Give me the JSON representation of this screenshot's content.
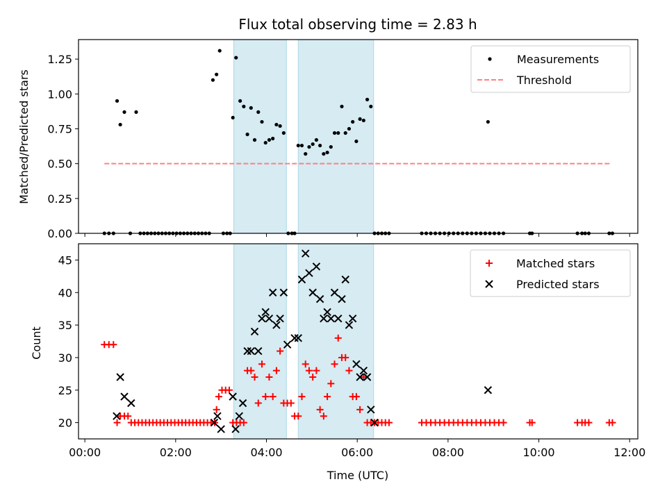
{
  "chart_data": [
    {
      "type": "scatter",
      "title": "Flux total observing time = 2.83 h",
      "xlabel": "",
      "ylabel": "Matched/Predicted stars",
      "xlim_hours": [
        -0.14,
        12.18
      ],
      "ylim": [
        0,
        1.39
      ],
      "yticks": [
        0,
        0.25,
        0.5,
        0.75,
        1.0,
        1.25
      ],
      "ytick_labels": [
        "0.00",
        "0.25",
        "0.50",
        "0.75",
        "1.00",
        "1.25"
      ],
      "shaded_intervals_hours": [
        [
          3.28,
          4.44
        ],
        [
          4.7,
          6.36
        ]
      ],
      "legend": {
        "position": "top-right",
        "entries": [
          "Measurements",
          "Threshold"
        ]
      },
      "threshold": {
        "name": "Threshold",
        "value": 0.5,
        "x_range_hours": [
          0.43,
          11.6
        ],
        "color": "#ff7f7f"
      },
      "series": [
        {
          "name": "Measurements",
          "color": "#000000",
          "x_hours": [
            0.43,
            0.53,
            0.63,
            0.71,
            0.78,
            0.87,
            1.0,
            1.13,
            1.22,
            1.3,
            1.38,
            1.46,
            1.54,
            1.62,
            1.7,
            1.78,
            1.86,
            1.94,
            2.02,
            2.1,
            2.18,
            2.26,
            2.34,
            2.42,
            2.5,
            2.58,
            2.66,
            2.74,
            2.82,
            2.9,
            2.97,
            3.05,
            3.13,
            3.2,
            3.26,
            3.33,
            3.42,
            3.5,
            3.58,
            3.66,
            3.74,
            3.82,
            3.9,
            3.98,
            4.06,
            4.14,
            4.22,
            4.3,
            4.38,
            4.48,
            4.56,
            4.62,
            4.7,
            4.78,
            4.86,
            4.94,
            5.02,
            5.1,
            5.18,
            5.26,
            5.34,
            5.42,
            5.5,
            5.58,
            5.66,
            5.74,
            5.82,
            5.9,
            5.98,
            6.06,
            6.14,
            6.22,
            6.3,
            6.38,
            6.46,
            6.54,
            6.62,
            6.7,
            7.42,
            7.52,
            7.62,
            7.72,
            7.82,
            7.92,
            8.02,
            8.12,
            8.22,
            8.32,
            8.42,
            8.52,
            8.62,
            8.72,
            8.82,
            8.88,
            8.92,
            9.02,
            9.12,
            9.22,
            9.8,
            9.85,
            10.85,
            10.95,
            11.02,
            11.1,
            11.55,
            11.62
          ],
          "y": [
            0,
            0,
            0,
            0.95,
            0.78,
            0.87,
            0,
            0.87,
            0,
            0,
            0,
            0,
            0,
            0,
            0,
            0,
            0,
            0,
            0,
            0,
            0,
            0,
            0,
            0,
            0,
            0,
            0,
            0,
            1.1,
            1.14,
            1.31,
            0,
            0,
            0,
            0.83,
            1.26,
            0.95,
            0.91,
            0.71,
            0.9,
            0.67,
            0.87,
            0.8,
            0.65,
            0.67,
            0.68,
            0.78,
            0.77,
            0.72,
            0,
            0,
            0,
            0.63,
            0.63,
            0.57,
            0.62,
            0.64,
            0.67,
            0.63,
            0.57,
            0.58,
            0.62,
            0.72,
            0.72,
            0.91,
            0.72,
            0.75,
            0.8,
            0.66,
            0.82,
            0.81,
            0.96,
            0.91,
            0,
            0,
            0,
            0,
            0,
            0,
            0,
            0,
            0,
            0,
            0,
            0,
            0,
            0,
            0,
            0,
            0,
            0,
            0,
            0,
            0.8,
            0,
            0,
            0,
            0,
            0,
            0,
            0,
            0,
            0,
            0,
            0,
            0
          ]
        }
      ]
    },
    {
      "type": "scatter",
      "title": "",
      "xlabel": "Time (UTC)",
      "ylabel": "Count",
      "xlim_hours": [
        -0.14,
        12.18
      ],
      "ylim": [
        17.5,
        47.5
      ],
      "yticks": [
        20,
        25,
        30,
        35,
        40,
        45
      ],
      "ytick_labels": [
        "20",
        "25",
        "30",
        "35",
        "40",
        "45"
      ],
      "xticks_hours": [
        0,
        2,
        4,
        6,
        8,
        10,
        12
      ],
      "xtick_labels": [
        "00:00",
        "02:00",
        "04:00",
        "06:00",
        "08:00",
        "10:00",
        "12:00"
      ],
      "shaded_intervals_hours": [
        [
          3.28,
          4.44
        ],
        [
          4.7,
          6.36
        ]
      ],
      "legend": {
        "position": "top-right",
        "entries": [
          "Matched stars",
          "Predicted stars"
        ]
      },
      "series": [
        {
          "name": "Matched stars",
          "marker": "plus",
          "color": "#ff0000",
          "x_hours": [
            0.43,
            0.53,
            0.63,
            0.71,
            0.78,
            0.87,
            0.95,
            1.02,
            1.1,
            1.18,
            1.26,
            1.34,
            1.42,
            1.5,
            1.58,
            1.66,
            1.74,
            1.82,
            1.9,
            1.98,
            2.06,
            2.14,
            2.22,
            2.3,
            2.38,
            2.46,
            2.54,
            2.62,
            2.7,
            2.78,
            2.86,
            2.9,
            2.95,
            3.02,
            3.1,
            3.18,
            3.26,
            3.34,
            3.42,
            3.5,
            3.58,
            3.66,
            3.74,
            3.82,
            3.9,
            3.98,
            4.06,
            4.14,
            4.22,
            4.3,
            4.38,
            4.46,
            4.54,
            4.62,
            4.7,
            4.78,
            4.86,
            4.94,
            5.02,
            5.1,
            5.18,
            5.26,
            5.34,
            5.42,
            5.5,
            5.58,
            5.66,
            5.74,
            5.82,
            5.9,
            5.98,
            6.06,
            6.14,
            6.22,
            6.3,
            6.38,
            6.46,
            6.54,
            6.62,
            6.7,
            7.42,
            7.52,
            7.62,
            7.72,
            7.82,
            7.92,
            8.02,
            8.12,
            8.22,
            8.32,
            8.42,
            8.52,
            8.62,
            8.72,
            8.82,
            8.92,
            9.02,
            9.12,
            9.22,
            9.8,
            9.85,
            10.85,
            10.95,
            11.02,
            11.1,
            11.55,
            11.62
          ],
          "y": [
            32,
            32,
            32,
            20,
            21,
            21,
            21,
            20,
            20,
            20,
            20,
            20,
            20,
            20,
            20,
            20,
            20,
            20,
            20,
            20,
            20,
            20,
            20,
            20,
            20,
            20,
            20,
            20,
            20,
            20,
            20,
            22,
            24,
            25,
            25,
            25,
            20,
            20,
            20,
            20,
            28,
            28,
            27,
            23,
            29,
            24,
            27,
            24,
            28,
            31,
            23,
            23,
            23,
            21,
            21,
            24,
            29,
            28,
            27,
            28,
            22,
            21,
            24,
            26,
            29,
            33,
            30,
            30,
            28,
            24,
            24,
            22,
            27,
            20,
            20,
            20,
            20,
            20,
            20,
            20,
            20,
            20,
            20,
            20,
            20,
            20,
            20,
            20,
            20,
            20,
            20,
            20,
            20,
            20,
            20,
            20,
            20,
            20,
            20,
            20,
            20,
            20,
            20,
            20,
            20,
            20,
            20
          ]
        },
        {
          "name": "Predicted stars",
          "marker": "x",
          "color": "#000000",
          "x_hours": [
            0.7,
            0.78,
            0.87,
            1.02,
            2.85,
            2.92,
            3.0,
            3.26,
            3.32,
            3.4,
            3.48,
            3.58,
            3.66,
            3.74,
            3.82,
            3.9,
            3.98,
            4.06,
            4.14,
            4.22,
            4.3,
            4.38,
            4.46,
            4.62,
            4.7,
            4.78,
            4.86,
            4.94,
            5.02,
            5.1,
            5.18,
            5.26,
            5.34,
            5.42,
            5.5,
            5.58,
            5.66,
            5.74,
            5.82,
            5.9,
            5.98,
            6.06,
            6.14,
            6.22,
            6.3,
            6.38,
            8.88
          ],
          "y": [
            21,
            27,
            24,
            23,
            20,
            21,
            19,
            24,
            19,
            21,
            23,
            31,
            31,
            34,
            31,
            36,
            37,
            36,
            40,
            35,
            36,
            40,
            32,
            33,
            33,
            42,
            46,
            43,
            40,
            44,
            39,
            36,
            37,
            36,
            40,
            36,
            39,
            42,
            35,
            36,
            29,
            27,
            28,
            27,
            22,
            20,
            25
          ]
        }
      ]
    }
  ]
}
